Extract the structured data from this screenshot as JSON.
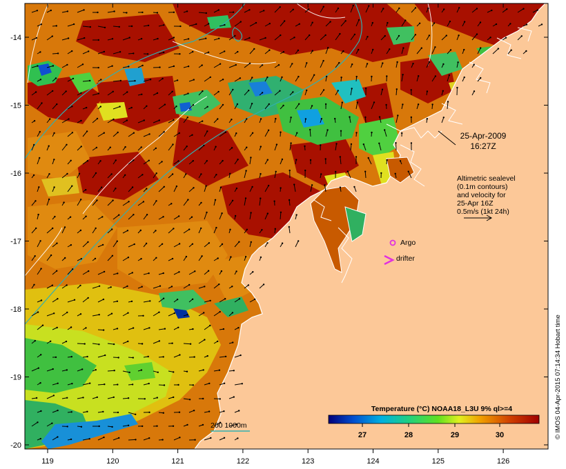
{
  "map": {
    "type": "sea-surface-temperature",
    "x_axis": {
      "ticks": [
        "119",
        "120",
        "121",
        "122",
        "123",
        "124",
        "125",
        "126"
      ]
    },
    "y_axis": {
      "ticks": [
        "-14",
        "-15",
        "-16",
        "-17",
        "-18",
        "-19",
        "-20"
      ]
    },
    "colors": {
      "land": "#fcc898",
      "warm_max": "#a80000",
      "cool_min": "#00007a",
      "coast": "#ffffff",
      "contour_sealevel": "#ffffff",
      "contour_depth": "#30b0b0",
      "argo": "#e030e0",
      "drifter": "#e030e0"
    }
  },
  "annotations": {
    "date": "25-Apr-2009",
    "time": "16:27Z",
    "altimetry_lines": [
      "Altimetric sealevel",
      "(0.1m contours)",
      "and velocity for",
      "25-Apr 16Z",
      "0.5m/s (1kt 24h)"
    ],
    "argo_label": "Argo",
    "drifter_label": "drifter",
    "depth_legend": "200  1000m"
  },
  "colorbar": {
    "title": "Temperature (°C) NOAA18_L3U 9% ql>=4",
    "ticks": [
      "27",
      "28",
      "29",
      "30"
    ],
    "gradient_stops": [
      "#00007a",
      "#0050d0",
      "#00b0e0",
      "#20d080",
      "#60e020",
      "#e0f020",
      "#f0a000",
      "#d04000",
      "#a00000"
    ]
  },
  "credit": "© IMOS 04-Apr-2015 07:14:34 Hobart time"
}
